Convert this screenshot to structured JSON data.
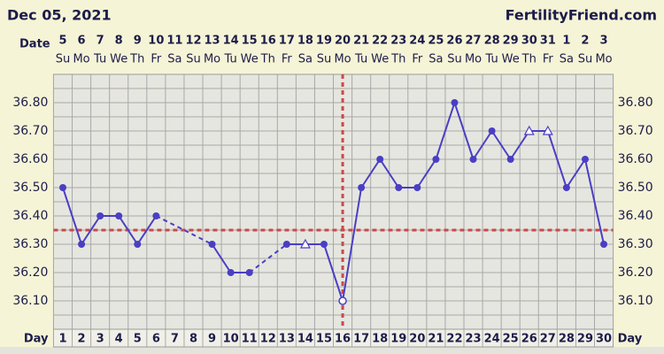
{
  "chart_data": {
    "type": "line",
    "title": "Dec 05, 2021",
    "site": "FertilityFriend.com",
    "date_label": "Date",
    "day_label": "Day",
    "dates": [
      "5",
      "6",
      "7",
      "8",
      "9",
      "10",
      "11",
      "12",
      "13",
      "14",
      "15",
      "16",
      "17",
      "18",
      "19",
      "20",
      "21",
      "22",
      "23",
      "24",
      "25",
      "26",
      "27",
      "28",
      "29",
      "30",
      "31",
      "1",
      "2",
      "3"
    ],
    "weekdays": [
      "Su",
      "Mo",
      "Tu",
      "We",
      "Th",
      "Fr",
      "Sa",
      "Su",
      "Mo",
      "Tu",
      "We",
      "Th",
      "Fr",
      "Sa",
      "Su",
      "Mo",
      "Tu",
      "We",
      "Th",
      "Fr",
      "Sa",
      "Su",
      "Mo",
      "Tu",
      "We",
      "Th",
      "Fr",
      "Sa",
      "Su",
      "Mo"
    ],
    "categories": [
      1,
      2,
      3,
      4,
      5,
      6,
      7,
      8,
      9,
      10,
      11,
      12,
      13,
      14,
      15,
      16,
      17,
      18,
      19,
      20,
      21,
      22,
      23,
      24,
      25,
      26,
      27,
      28,
      29,
      30
    ],
    "values": [
      36.5,
      36.3,
      36.4,
      36.4,
      36.3,
      36.4,
      null,
      null,
      36.3,
      36.2,
      36.2,
      null,
      36.3,
      36.3,
      36.3,
      36.1,
      36.5,
      36.6,
      36.5,
      36.5,
      36.6,
      36.8,
      36.6,
      36.7,
      36.6,
      36.7,
      36.7,
      36.5,
      36.6,
      36.3
    ],
    "markers": [
      "circle",
      "circle",
      "circle",
      "circle",
      "circle",
      "circle",
      null,
      null,
      "circle",
      "circle",
      "circle",
      null,
      "circle",
      "open-triangle",
      "circle",
      "open-circle",
      "circle",
      "circle",
      "circle",
      "circle",
      "circle",
      "circle",
      "circle",
      "circle",
      "circle",
      "open-triangle",
      "open-triangle",
      "circle",
      "circle",
      "circle"
    ],
    "color": "#4a3fc4",
    "coverline": 36.35,
    "ovulation_day": 16,
    "reference_color": "#c94a4a",
    "ylim": [
      36.0,
      36.9
    ],
    "yticks": [
      {
        "value": 36.1,
        "label": "36.10"
      },
      {
        "value": 36.2,
        "label": "36.20"
      },
      {
        "value": 36.3,
        "label": "36.30"
      },
      {
        "value": 36.4,
        "label": "36.40"
      },
      {
        "value": 36.5,
        "label": "36.50"
      },
      {
        "value": 36.6,
        "label": "36.60"
      },
      {
        "value": 36.7,
        "label": "36.70"
      },
      {
        "value": 36.8,
        "label": "36.80"
      }
    ],
    "grid": true
  }
}
